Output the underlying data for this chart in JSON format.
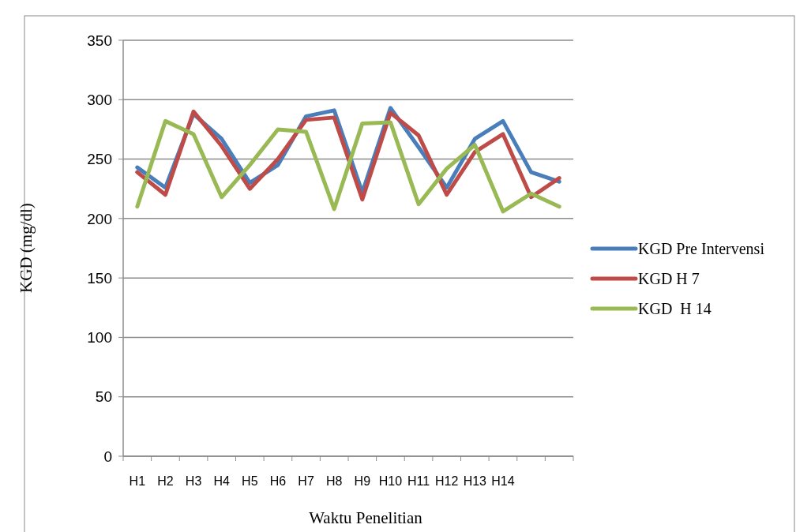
{
  "chart_data": {
    "type": "line",
    "xlabel": "Waktu Penelitian",
    "ylabel": "KGD (mg/dl)",
    "categories": [
      "H1",
      "H2",
      "H3",
      "H4",
      "H5",
      "H6",
      "H7",
      "H8",
      "H9",
      "H10",
      "H11",
      "H12",
      "H13",
      "H14",
      null,
      null
    ],
    "series": [
      {
        "name": "KGD Pre Intervensi",
        "color": "#4a7ebb",
        "values": [
          243,
          226,
          288,
          267,
          230,
          245,
          286,
          291,
          222,
          293,
          260,
          226,
          267,
          282,
          239,
          231
        ]
      },
      {
        "name": "KGD H 7",
        "color": "#be4b48",
        "values": [
          239,
          220,
          290,
          261,
          225,
          250,
          283,
          285,
          216,
          289,
          270,
          220,
          256,
          271,
          218,
          234
        ]
      },
      {
        "name": "KGD  H 14",
        "color": "#98b954",
        "values": [
          210,
          282,
          271,
          218,
          245,
          275,
          273,
          208,
          280,
          281,
          212,
          242,
          262,
          206,
          221,
          210
        ]
      }
    ],
    "ylim": [
      0,
      350
    ],
    "yticks": [
      0,
      50,
      100,
      150,
      200,
      250,
      300,
      350
    ],
    "grid": "y",
    "legend": "right",
    "line_style": "solid"
  }
}
